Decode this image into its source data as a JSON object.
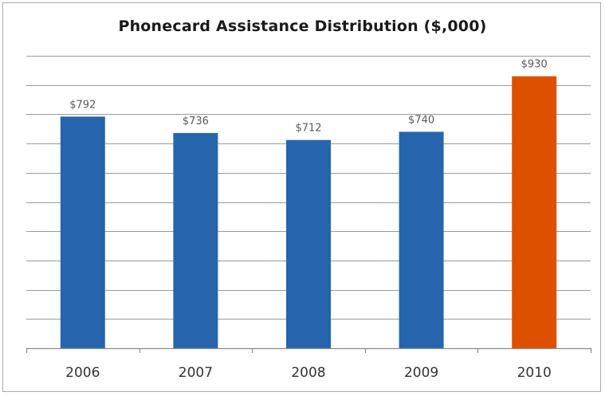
{
  "chart_data": {
    "type": "bar",
    "title": "Phonecard Assistance Distribution ($,000)",
    "xlabel": "",
    "ylabel": "",
    "categories": [
      "2006",
      "2007",
      "2008",
      "2009",
      "2010"
    ],
    "values": [
      792,
      736,
      712,
      740,
      930
    ],
    "data_labels": [
      "$792",
      "$736",
      "$712",
      "$740",
      "$930"
    ],
    "colors": [
      "#2665ad",
      "#2665ad",
      "#2665ad",
      "#2665ad",
      "#dd5000"
    ],
    "ylim": [
      0,
      1000
    ],
    "ytick_step": 100,
    "grid": true,
    "legend": "none"
  }
}
